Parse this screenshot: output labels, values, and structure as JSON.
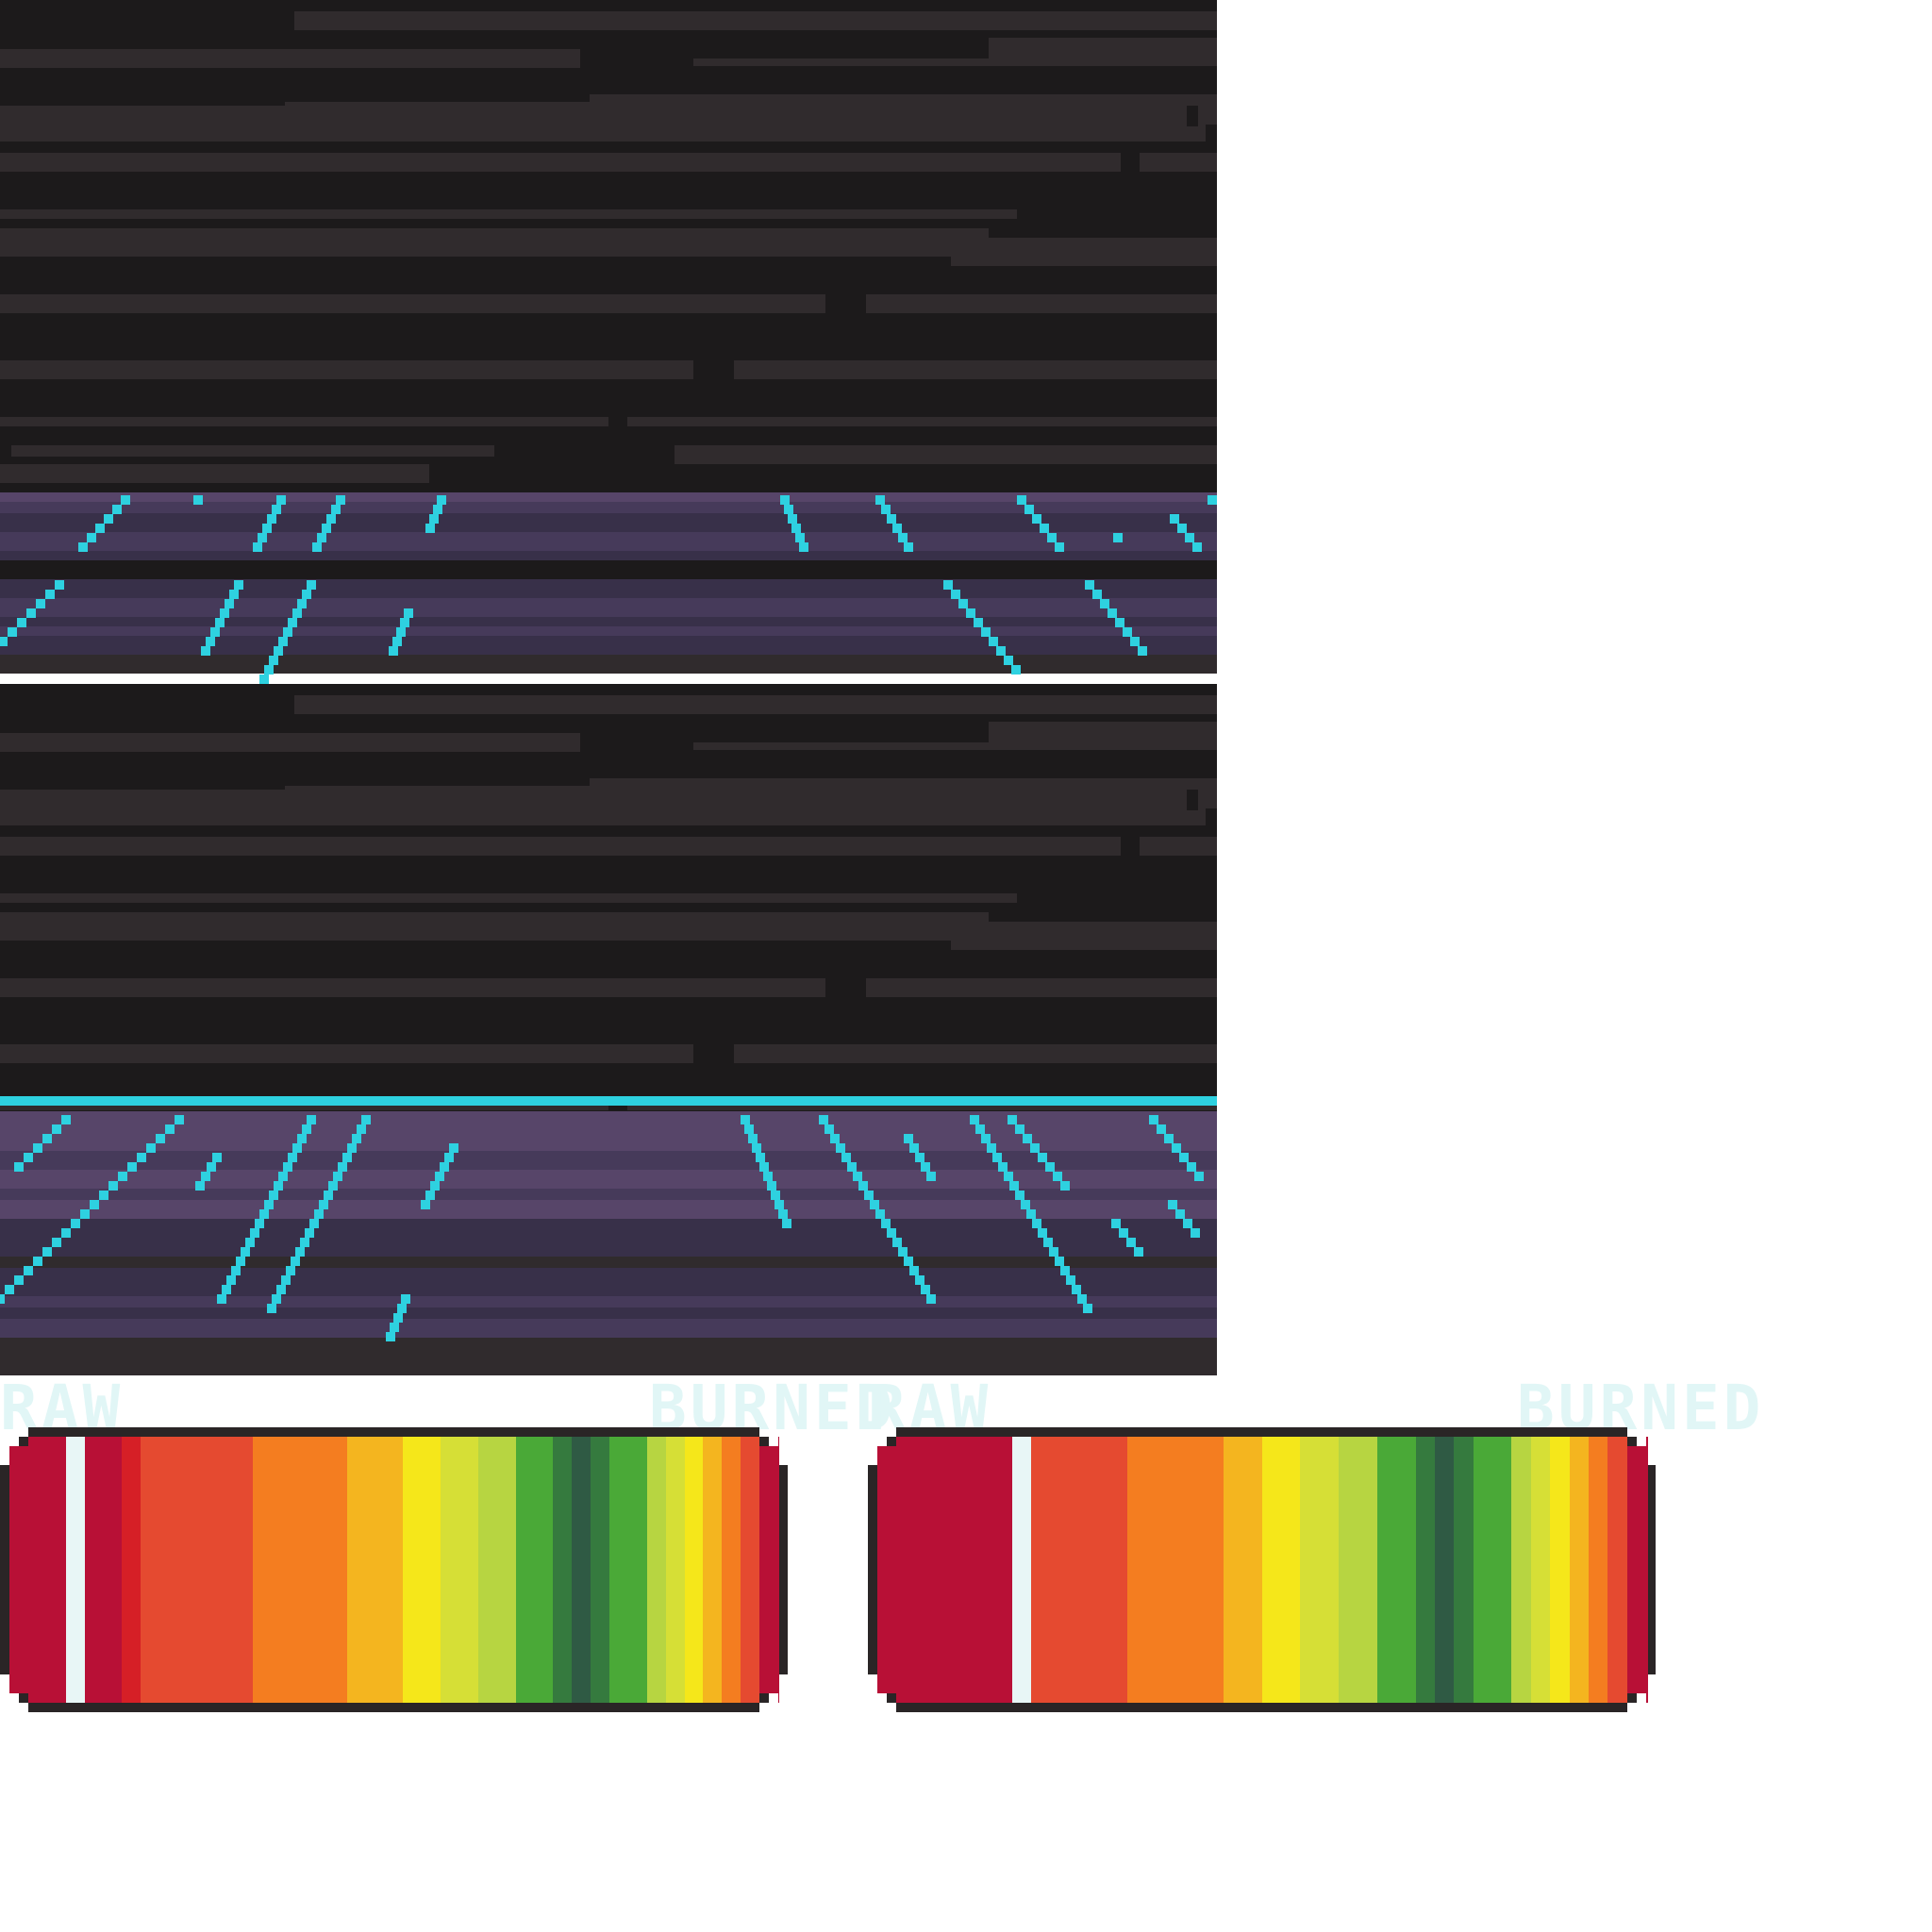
{
  "colors": {
    "background": "#ffffff",
    "dark_base": "#1c1a1b",
    "dark_stripe": "#302b2d",
    "purple_light": "#574569",
    "purple_mid": "#463a5a",
    "purple_dark": "#383049",
    "cyan": "#2ed1e0",
    "label_color": "#e1f6f6",
    "bar_outline": "#2a2526"
  },
  "labels": {
    "left_raw": "RAW",
    "left_burned": "BURNED",
    "right_raw": "RAW",
    "right_burned": "BURNED"
  },
  "icons": [
    "cyan-rain-streak",
    "pixel-font-label"
  ],
  "gradient_bars": {
    "left": [
      "#b81036",
      "#b81036",
      "#b81036",
      "#e8f6f6",
      "#b81036",
      "#b81036",
      "#d61f26",
      "#e54a30",
      "#e54a30",
      "#e54a30",
      "#e54a30",
      "#e54a30",
      "#e54a30",
      "#f47d20",
      "#f47d20",
      "#f47d20",
      "#f47d20",
      "#f47d20",
      "#f4b51f",
      "#f4b51f",
      "#f4b51f",
      "#f5e71a",
      "#f5e71a",
      "#d6df36",
      "#d6df36",
      "#b7d541",
      "#b7d541",
      "#4aa937",
      "#4aa937",
      "#357a3e",
      "#2f5a44",
      "#357a3e",
      "#4aa937",
      "#4aa937",
      "#b7d541",
      "#d6df36",
      "#f5e71a",
      "#f4b51f",
      "#f47d20",
      "#e54a30",
      "#b81036"
    ],
    "right": [
      "#b81036",
      "#b81036",
      "#b81036",
      "#b81036",
      "#b81036",
      "#b81036",
      "#b81036",
      "#e8f6f6",
      "#e54a30",
      "#e54a30",
      "#e54a30",
      "#e54a30",
      "#e54a30",
      "#f47d20",
      "#f47d20",
      "#f47d20",
      "#f47d20",
      "#f47d20",
      "#f4b51f",
      "#f4b51f",
      "#f5e71a",
      "#f5e71a",
      "#d6df36",
      "#d6df36",
      "#b7d541",
      "#b7d541",
      "#4aa937",
      "#4aa937",
      "#357a3e",
      "#2f5a44",
      "#357a3e",
      "#4aa937",
      "#4aa937",
      "#b7d541",
      "#d6df36",
      "#f5e71a",
      "#f4b51f",
      "#f47d20",
      "#e54a30",
      "#b81036"
    ]
  }
}
